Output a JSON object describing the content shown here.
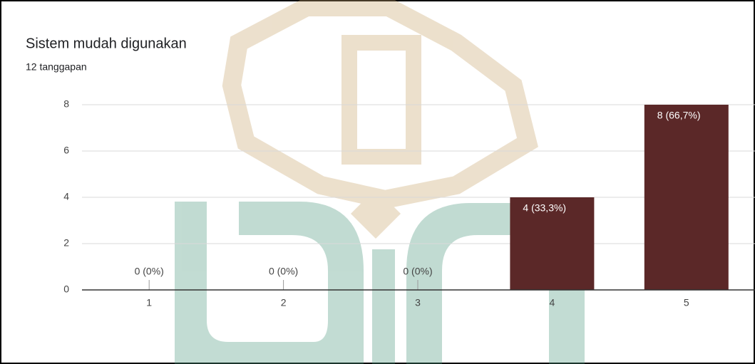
{
  "chart_data": {
    "type": "bar",
    "title": "Sistem mudah digunakan",
    "subtitle": "12 tanggapan",
    "categories": [
      "1",
      "2",
      "3",
      "4",
      "5"
    ],
    "values": [
      0,
      0,
      0,
      4,
      8
    ],
    "value_labels": [
      "0 (0%)",
      "0 (0%)",
      "0 (0%)",
      "4 (33,3%)",
      "8 (66,7%)"
    ],
    "color": "#5b2828",
    "ylim": [
      0,
      8
    ],
    "yticks": [
      0,
      2,
      4,
      6,
      8
    ],
    "grid": true
  }
}
